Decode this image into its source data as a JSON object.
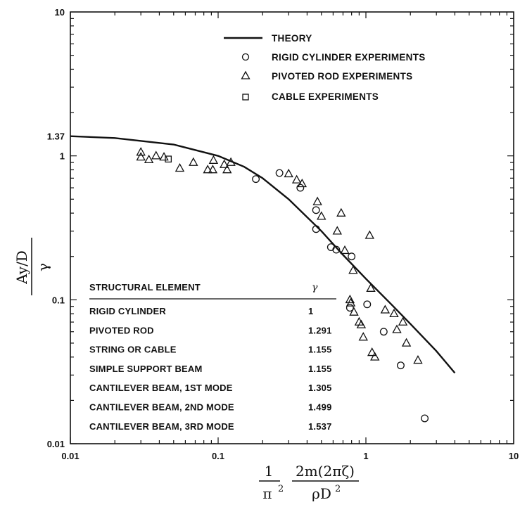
{
  "chart_data": {
    "type": "scatter",
    "xscale": "log",
    "yscale": "log",
    "xlim": [
      0.01,
      10
    ],
    "ylim": [
      0.01,
      10
    ],
    "x_ticks": [
      "0.01",
      "0.1",
      "1",
      "10"
    ],
    "y_ticks": [
      "0.01",
      "0.1",
      "1",
      "1.37",
      "10"
    ],
    "ylabel_top": "Ay/D",
    "ylabel_bottom": "γ",
    "xlabel": {
      "frac1_num": "1",
      "frac1_den": "π",
      "frac1_den_sup": "2",
      "frac2_num": "2m(2πζ)",
      "frac2_den": "ρD",
      "frac2_den_sup": "2"
    },
    "legend": {
      "theory": "THEORY",
      "rigid": "RIGID CYLINDER EXPERIMENTS",
      "pivoted": "PIVOTED ROD EXPERIMENTS",
      "cable": "CABLE EXPERIMENTS"
    },
    "series": [
      {
        "name": "THEORY",
        "kind": "line",
        "x": [
          0.01,
          0.02,
          0.05,
          0.1,
          0.15,
          0.2,
          0.3,
          0.5,
          0.7,
          1.0,
          1.5,
          2.0,
          3.0,
          4.0
        ],
        "y": [
          1.37,
          1.33,
          1.2,
          1.0,
          0.84,
          0.7,
          0.5,
          0.3,
          0.205,
          0.14,
          0.092,
          0.068,
          0.044,
          0.031
        ]
      },
      {
        "name": "RIGID CYLINDER EXPERIMENTS",
        "kind": "circle",
        "x": [
          0.18,
          0.26,
          0.36,
          0.46,
          0.46,
          0.58,
          0.63,
          0.8,
          0.78,
          1.02,
          1.32,
          1.72,
          2.5
        ],
        "y": [
          0.69,
          0.76,
          0.6,
          0.42,
          0.31,
          0.232,
          0.223,
          0.2,
          0.088,
          0.093,
          0.06,
          0.035,
          0.015
        ]
      },
      {
        "name": "PIVOTED ROD EXPERIMENTS",
        "kind": "triangle",
        "x": [
          0.03,
          0.03,
          0.034,
          0.038,
          0.043,
          0.055,
          0.068,
          0.085,
          0.092,
          0.093,
          0.11,
          0.115,
          0.122,
          0.3,
          0.34,
          0.37,
          0.47,
          0.5,
          0.64,
          0.68,
          0.72,
          0.82,
          0.78,
          0.79,
          0.83,
          0.9,
          0.93,
          0.96,
          1.06,
          1.08,
          1.1,
          1.15,
          1.35,
          1.55,
          1.62,
          1.78,
          1.88,
          2.25
        ],
        "y": [
          1.06,
          0.98,
          0.94,
          1.0,
          0.98,
          0.82,
          0.9,
          0.8,
          0.8,
          0.93,
          0.87,
          0.8,
          0.9,
          0.75,
          0.68,
          0.64,
          0.48,
          0.38,
          0.3,
          0.4,
          0.22,
          0.16,
          0.1,
          0.095,
          0.082,
          0.07,
          0.067,
          0.055,
          0.28,
          0.12,
          0.043,
          0.04,
          0.085,
          0.08,
          0.062,
          0.07,
          0.05,
          0.038
        ]
      },
      {
        "name": "CABLE EXPERIMENTS",
        "kind": "square",
        "x": [
          0.046
        ],
        "y": [
          0.95
        ]
      }
    ],
    "table": {
      "header_left": "STRUCTURAL ELEMENT",
      "header_right": "γ",
      "rows": [
        {
          "element": "RIGID CYLINDER",
          "gamma": "1"
        },
        {
          "element": "PIVOTED ROD",
          "gamma": "1.291"
        },
        {
          "element": "STRING OR CABLE",
          "gamma": "1.155"
        },
        {
          "element": "SIMPLE SUPPORT BEAM",
          "gamma": "1.155"
        },
        {
          "element": "CANTILEVER BEAM,  1ST MODE",
          "gamma": "1.305"
        },
        {
          "element": "CANTILEVER BEAM,  2ND MODE",
          "gamma": "1.499"
        },
        {
          "element": "CANTILEVER BEAM,  3RD MODE",
          "gamma": "1.537"
        }
      ]
    },
    "grid": false
  }
}
